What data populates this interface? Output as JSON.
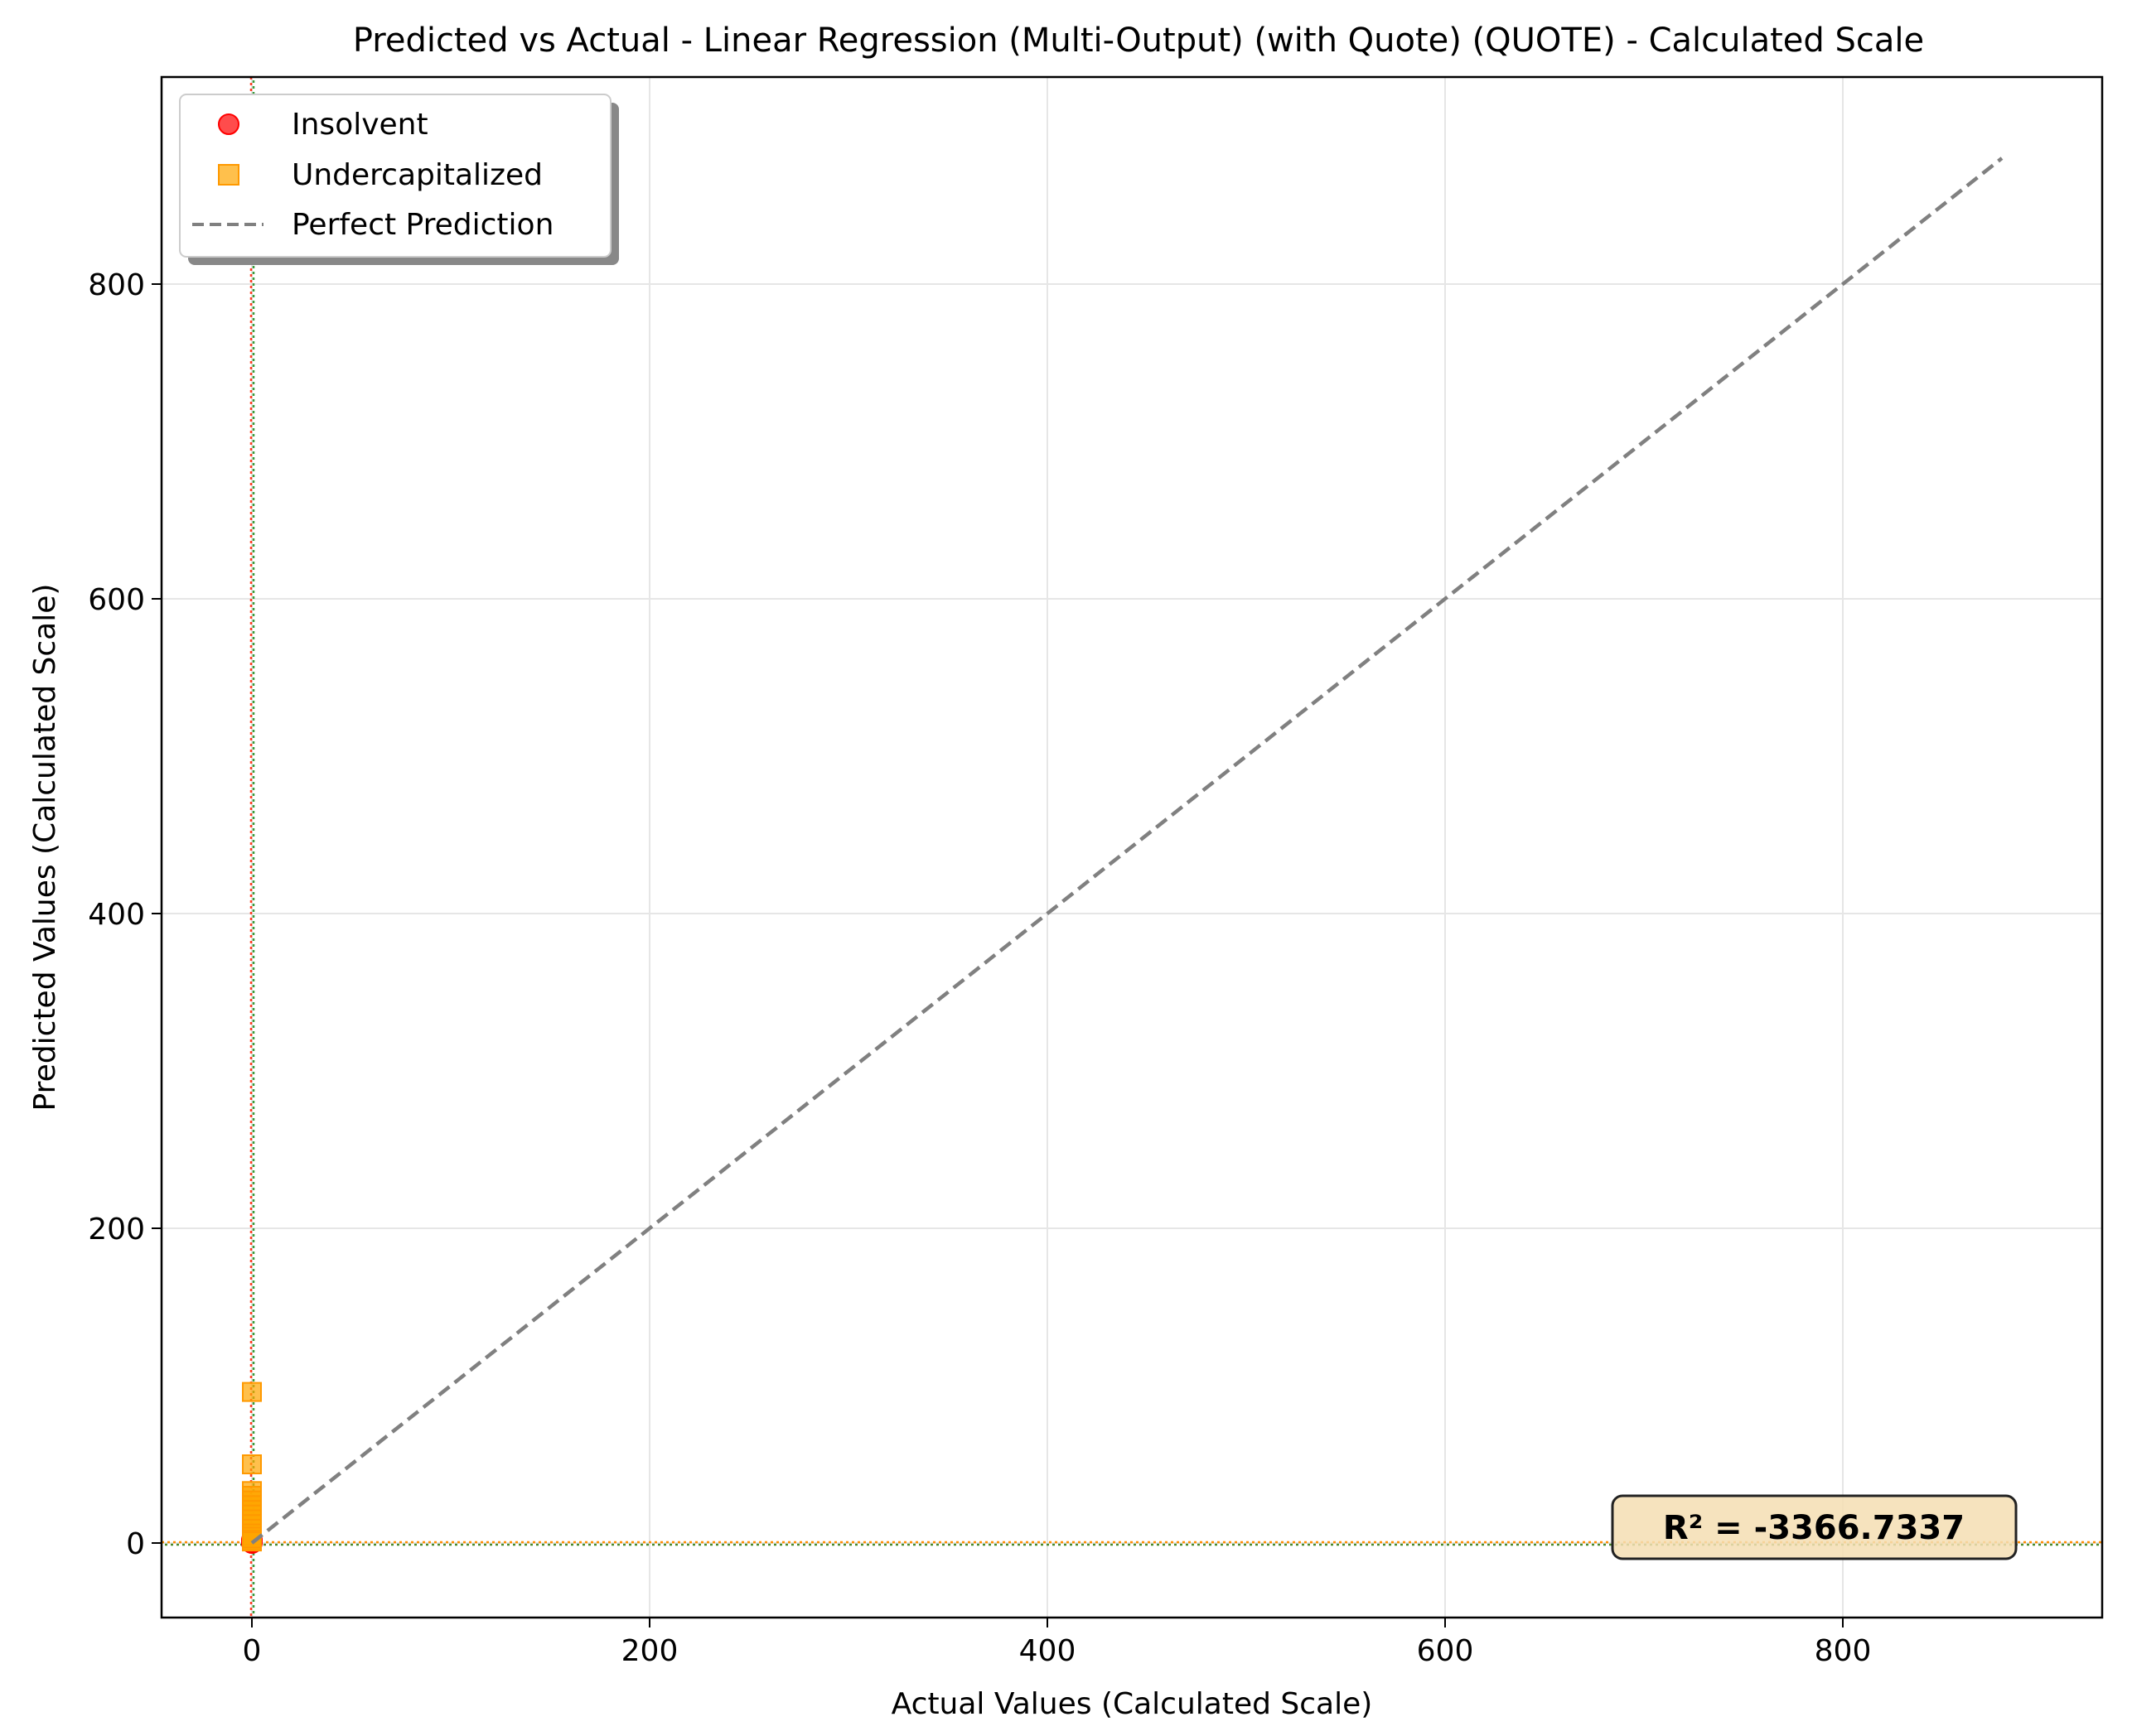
{
  "chart_data": {
    "type": "scatter",
    "title": "Predicted vs Actual - Linear Regression (Multi-Output) (with Quote) (QUOTE) - Calculated Scale",
    "xlabel": "Actual Values (Calculated Scale)",
    "ylabel": "Predicted Values (Calculated Scale)",
    "xlim": [
      -45,
      925
    ],
    "ylim": [
      -45,
      925
    ],
    "xticks": [
      0,
      200,
      400,
      600,
      800
    ],
    "yticks": [
      0,
      200,
      400,
      600,
      800
    ],
    "grid": true,
    "legend_position": "top-left",
    "series": [
      {
        "name": "Insolvent",
        "marker": "circle",
        "color": "#ff0000",
        "points": [
          {
            "x": 0,
            "y": 0
          },
          {
            "x": 0,
            "y": 0.5
          },
          {
            "x": 0,
            "y": 1
          },
          {
            "x": 0,
            "y": 1.5
          },
          {
            "x": 0,
            "y": 2
          },
          {
            "x": 0,
            "y": 0.8
          },
          {
            "x": 0,
            "y": 1.2
          },
          {
            "x": 0,
            "y": 0.3
          }
        ]
      },
      {
        "name": "Undercapitalized",
        "marker": "square",
        "color": "#ffa500",
        "points": [
          {
            "x": 0,
            "y": 96
          },
          {
            "x": 0,
            "y": 50
          },
          {
            "x": 0,
            "y": 33
          },
          {
            "x": 0,
            "y": 30
          },
          {
            "x": 0,
            "y": 27
          },
          {
            "x": 0,
            "y": 24
          },
          {
            "x": 0,
            "y": 21
          },
          {
            "x": 0,
            "y": 18
          },
          {
            "x": 0,
            "y": 15
          },
          {
            "x": 0,
            "y": 12
          },
          {
            "x": 0,
            "y": 9
          },
          {
            "x": 0,
            "y": 6
          },
          {
            "x": 0,
            "y": 4
          },
          {
            "x": 0,
            "y": 2
          },
          {
            "x": 0,
            "y": 1
          }
        ]
      }
    ],
    "reference_line": {
      "name": "Perfect Prediction",
      "from": [
        0,
        0
      ],
      "to": [
        880,
        880
      ],
      "color": "#808080",
      "style": "dashed"
    },
    "annotation": "R² = -3366.7337"
  }
}
